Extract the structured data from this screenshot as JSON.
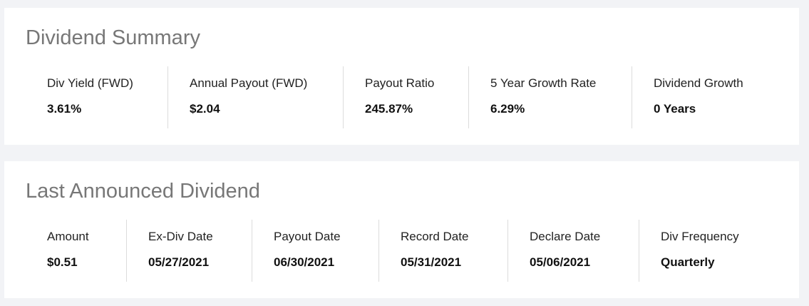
{
  "summary": {
    "title": "Dividend Summary",
    "items": [
      {
        "label": "Div Yield (FWD)",
        "value": "3.61%"
      },
      {
        "label": "Annual Payout (FWD)",
        "value": "$2.04"
      },
      {
        "label": "Payout Ratio",
        "value": "245.87%"
      },
      {
        "label": "5 Year Growth Rate",
        "value": "6.29%"
      },
      {
        "label": "Dividend Growth",
        "value": "0 Years"
      }
    ]
  },
  "last_dividend": {
    "title": "Last Announced Dividend",
    "items": [
      {
        "label": "Amount",
        "value": "$0.51"
      },
      {
        "label": "Ex-Div Date",
        "value": "05/27/2021"
      },
      {
        "label": "Payout Date",
        "value": "06/30/2021"
      },
      {
        "label": "Record Date",
        "value": "05/31/2021"
      },
      {
        "label": "Declare Date",
        "value": "05/06/2021"
      },
      {
        "label": "Div Frequency",
        "value": "Quarterly"
      }
    ]
  }
}
